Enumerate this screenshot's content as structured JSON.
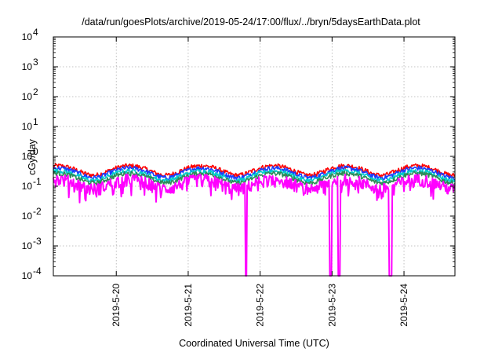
{
  "chart_data": {
    "type": "line",
    "title": "/data/run/goesPlots/archive/2019-05-24/17:00/flux/../bryn/5daysEarthData.plot",
    "xlabel": "Coordinated Universal Time (UTC)",
    "ylabel": "cGy/day",
    "yscale": "log",
    "ylim": [
      0.0001,
      10000
    ],
    "y_ticks": [
      {
        "value": 0.0001,
        "base": "10",
        "exp": "-4"
      },
      {
        "value": 0.001,
        "base": "10",
        "exp": "-3"
      },
      {
        "value": 0.01,
        "base": "10",
        "exp": "-2"
      },
      {
        "value": 0.1,
        "base": "10",
        "exp": "-1"
      },
      {
        "value": 1,
        "base": "10",
        "exp": "0"
      },
      {
        "value": 10,
        "base": "10",
        "exp": "1"
      },
      {
        "value": 100,
        "base": "10",
        "exp": "2"
      },
      {
        "value": 1000,
        "base": "10",
        "exp": "3"
      },
      {
        "value": 10000,
        "base": "10",
        "exp": "4"
      }
    ],
    "xlim": [
      "2019-05-19 03:00",
      "2019-05-24 17:00"
    ],
    "x_ticks": [
      "2019-5-20",
      "2019-5-21",
      "2019-5-22",
      "2019-5-23",
      "2019-5-24"
    ],
    "grid": true,
    "series_colors": [
      "#ff0000",
      "#1a3cff",
      "#00cccc",
      "#2e8b57",
      "#ff00ff"
    ],
    "series_levels": [
      0.36,
      0.3,
      0.24,
      0.2,
      0.13
    ],
    "dropouts": [
      {
        "start": "2019-05-21 19:00",
        "end": "2019-05-21 19:40"
      },
      {
        "start": "2019-05-22 23:00",
        "end": "2019-05-23 00:00"
      },
      {
        "start": "2019-05-23 02:00",
        "end": "2019-05-23 02:40"
      },
      {
        "start": "2019-05-23 19:00",
        "end": "2019-05-23 20:00"
      }
    ]
  }
}
